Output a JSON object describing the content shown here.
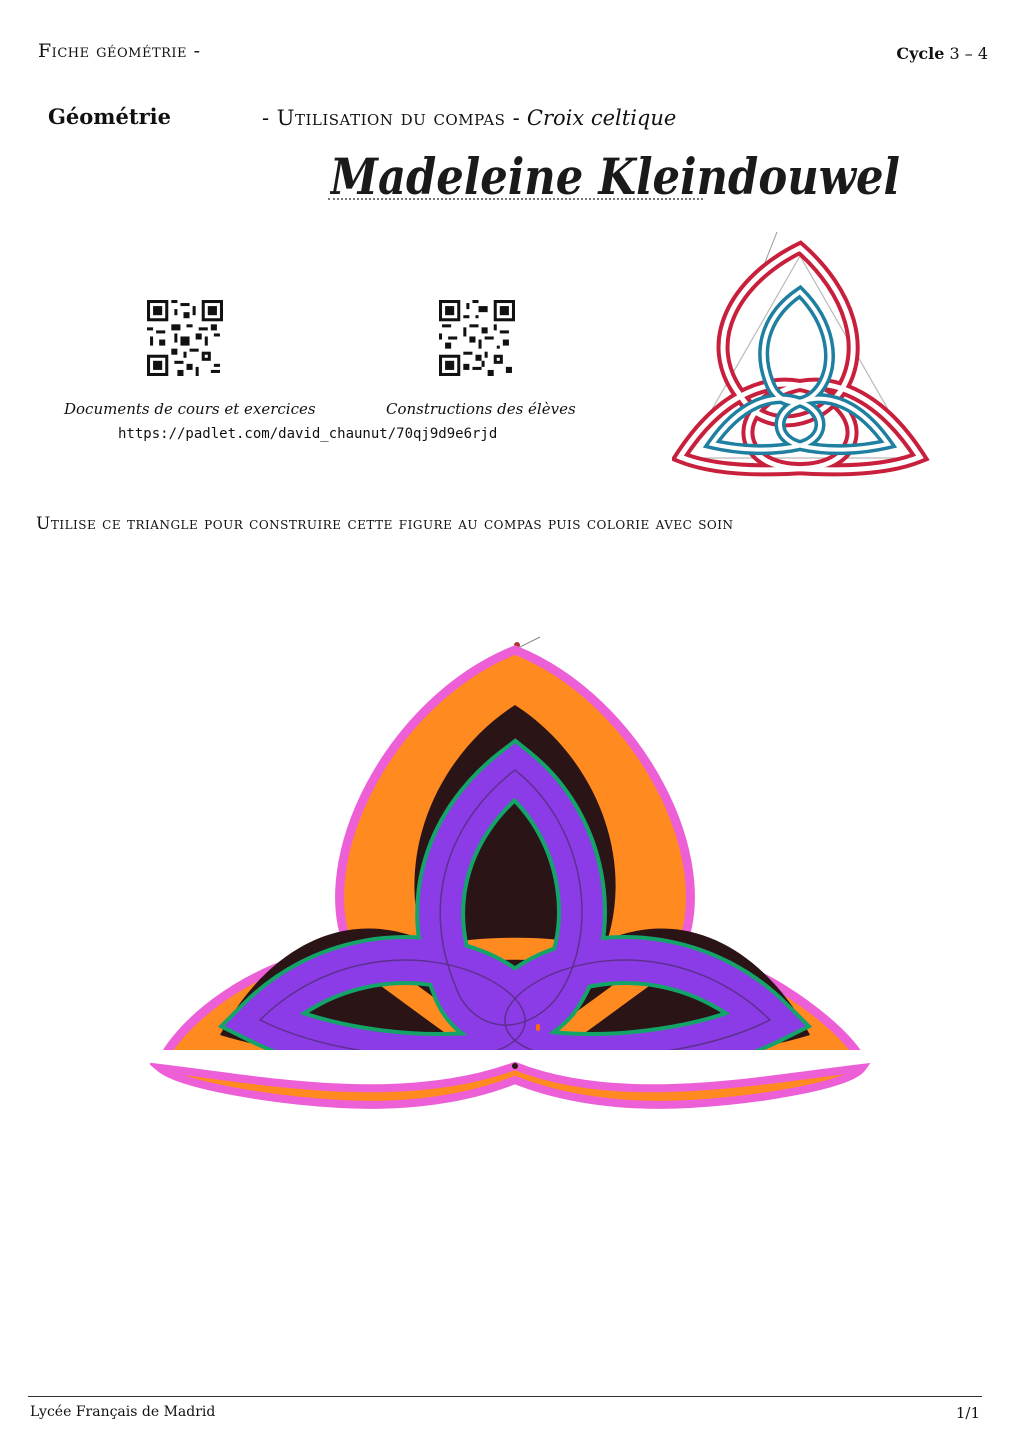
{
  "header": {
    "left": "Fiche géométrie -",
    "right_label": "Cycle",
    "right_value": "3 – 4"
  },
  "subject": "Géométrie",
  "title": {
    "prefix": "- Utilisation du compas -",
    "italic": "Croix celtique"
  },
  "student_name": "Madeleine Kleindouwel",
  "qr_codes": [
    {
      "caption": "Documents de cours et exercices"
    },
    {
      "caption": "Constructions des élèves"
    }
  ],
  "url": "https://padlet.com/david_chaunut/70qj9d9e6rjd",
  "instruction": "Utilise ce triangle pour construire cette figure au compas puis colorie avec soin",
  "footer": {
    "left": "Lycée Français de Madrid",
    "right": "1/1"
  },
  "colors": {
    "model_outer": "#c8203c",
    "model_inner": "#1f7fa0",
    "drawing_outline": "#ec5fd6",
    "drawing_outer_band": "#ff8a1f",
    "drawing_dark": "#2a1416",
    "drawing_inner_band": "#8c3ce6",
    "drawing_edge": "#14a46a"
  }
}
